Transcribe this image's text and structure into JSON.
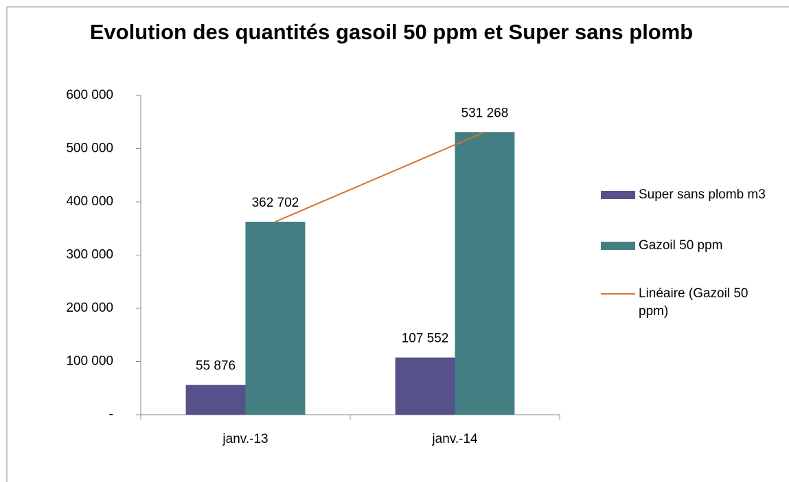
{
  "chart_data": {
    "type": "bar",
    "title": "Evolution des quantités gasoil 50 ppm et Super sans plomb",
    "categories": [
      "janv.-13",
      "janv.-14"
    ],
    "series": [
      {
        "name": "Super sans plomb m3",
        "color": "#56518a",
        "values": [
          55876,
          107552
        ],
        "value_labels": [
          "55 876",
          "107 552"
        ]
      },
      {
        "name": "Gazoil 50 ppm",
        "color": "#437f82",
        "values": [
          362702,
          531268
        ],
        "value_labels": [
          "362 702",
          "531 268"
        ]
      }
    ],
    "trendline": {
      "name": "Linéaire (Gazoil 50 ppm)",
      "color": "#d9722f",
      "type": "linear"
    },
    "ylim": [
      0,
      600000
    ],
    "yticks": [
      {
        "value": 0,
        "label": "-"
      },
      {
        "value": 100000,
        "label": "100 000"
      },
      {
        "value": 200000,
        "label": "200 000"
      },
      {
        "value": 300000,
        "label": "300 000"
      },
      {
        "value": 400000,
        "label": "400 000"
      },
      {
        "value": 500000,
        "label": "500 000"
      },
      {
        "value": 600000,
        "label": "600 000"
      }
    ],
    "legend": "right",
    "grid": false
  }
}
